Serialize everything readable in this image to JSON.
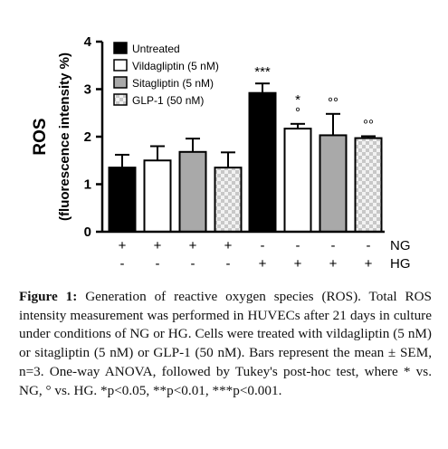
{
  "chart_data": {
    "type": "bar",
    "ylabel_line1": "ROS",
    "ylabel_line2": "(fluorescence intensity %)",
    "ylim": [
      0,
      4
    ],
    "yticks": [
      "0",
      "1",
      "2",
      "3",
      "4"
    ],
    "grid": false,
    "legend_position": "top-left",
    "series": [
      {
        "name": "Untreated",
        "fill": "solid-black"
      },
      {
        "name": "Vildagliptin (5 nM)",
        "fill": "white"
      },
      {
        "name": "Sitagliptin (5 nM)",
        "fill": "gray"
      },
      {
        "name": "GLP-1 (50 nM)",
        "fill": "checkered"
      }
    ],
    "bars": [
      {
        "series": 0,
        "condition": "NG",
        "value": 1.35,
        "sem": 0.27,
        "annotation": ""
      },
      {
        "series": 1,
        "condition": "NG",
        "value": 1.5,
        "sem": 0.3,
        "annotation": ""
      },
      {
        "series": 2,
        "condition": "NG",
        "value": 1.68,
        "sem": 0.28,
        "annotation": ""
      },
      {
        "series": 3,
        "condition": "NG",
        "value": 1.35,
        "sem": 0.32,
        "annotation": ""
      },
      {
        "series": 0,
        "condition": "HG",
        "value": 2.92,
        "sem": 0.2,
        "annotation": "***"
      },
      {
        "series": 1,
        "condition": "HG",
        "value": 2.17,
        "sem": 0.1,
        "annotation": "*\n°"
      },
      {
        "series": 2,
        "condition": "HG",
        "value": 2.03,
        "sem": 0.45,
        "annotation": "°°"
      },
      {
        "series": 3,
        "condition": "HG",
        "value": 1.97,
        "sem": 0.04,
        "annotation": "°°"
      }
    ],
    "condition_rows": [
      {
        "label": "NG",
        "signs": [
          "+",
          "+",
          "+",
          "+",
          "-",
          "-",
          "-",
          "-"
        ]
      },
      {
        "label": "HG",
        "signs": [
          "-",
          "-",
          "-",
          "-",
          "+",
          "+",
          "+",
          "+"
        ]
      }
    ]
  },
  "caption": {
    "label": "Figure 1:",
    "text": "Generation of reactive oxygen species (ROS). Total ROS intensity measurement was performed in HUVECs after 21 days in culture under conditions of NG or HG. Cells were treated with vildagliptin (5 nM) or sitagliptin (5 nM) or GLP-1 (50 nM). Bars represent the mean ± SEM, n=3. One-way ANOVA, followed by Tukey's post-hoc test, where * vs. NG, ° vs. HG. *p<0.05, **p<0.01, ***p<0.001."
  },
  "colors": {
    "black": "#000000",
    "gray": "#a9a9a9",
    "white": "#ffffff",
    "checker_light": "#f2f2f2",
    "checker_dark": "#c8c8c8"
  }
}
